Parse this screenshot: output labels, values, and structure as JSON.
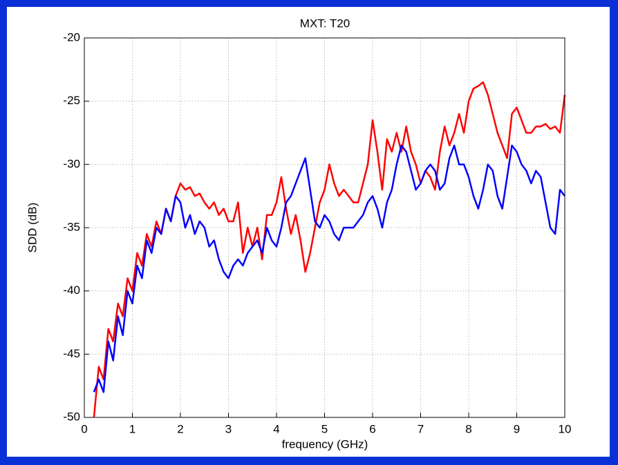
{
  "chart_data": {
    "type": "line",
    "title": "MXT: T20",
    "xlabel": "frequency (GHz)",
    "ylabel": "SDD (dB)",
    "x": [
      0.2,
      0.3,
      0.4,
      0.5,
      0.6,
      0.7,
      0.8,
      0.9,
      1.0,
      1.1,
      1.2,
      1.3,
      1.4,
      1.5,
      1.6,
      1.7,
      1.8,
      1.9,
      2.0,
      2.1,
      2.2,
      2.3,
      2.4,
      2.5,
      2.6,
      2.7,
      2.8,
      2.9,
      3.0,
      3.1,
      3.2,
      3.3,
      3.4,
      3.5,
      3.6,
      3.7,
      3.8,
      3.9,
      4.0,
      4.1,
      4.2,
      4.3,
      4.4,
      4.5,
      4.6,
      4.7,
      4.8,
      4.9,
      5.0,
      5.1,
      5.2,
      5.3,
      5.4,
      5.5,
      5.6,
      5.7,
      5.8,
      5.9,
      6.0,
      6.1,
      6.2,
      6.3,
      6.4,
      6.5,
      6.6,
      6.7,
      6.8,
      6.9,
      7.0,
      7.1,
      7.2,
      7.3,
      7.4,
      7.5,
      7.6,
      7.7,
      7.8,
      7.9,
      8.0,
      8.1,
      8.2,
      8.3,
      8.4,
      8.5,
      8.6,
      8.7,
      8.8,
      8.9,
      9.0,
      9.1,
      9.2,
      9.3,
      9.4,
      9.5,
      9.6,
      9.7,
      9.8,
      9.9,
      10.0
    ],
    "series": [
      {
        "color": "#ff0000",
        "values": [
          -50,
          -46,
          -47,
          -43,
          -44,
          -41,
          -42,
          -39,
          -40,
          -37,
          -38,
          -35.5,
          -36.5,
          -34.5,
          -35.5,
          -33.5,
          -34.5,
          -32.5,
          -31.5,
          -32,
          -31.8,
          -32.5,
          -32.3,
          -33,
          -33.5,
          -33,
          -34,
          -33.5,
          -34.5,
          -34.5,
          -33,
          -37,
          -35,
          -36.5,
          -35,
          -37.5,
          -34,
          -34,
          -33,
          -31,
          -33.5,
          -35.5,
          -34,
          -36,
          -38.5,
          -37,
          -35,
          -33,
          -32,
          -30,
          -31.5,
          -32.5,
          -32,
          -32.5,
          -33,
          -33,
          -31.5,
          -30,
          -26.5,
          -29,
          -32,
          -28,
          -29,
          -27.5,
          -29,
          -27,
          -29,
          -30,
          -31.5,
          -30.5,
          -31,
          -32,
          -29,
          -27,
          -28.5,
          -27.5,
          -26,
          -27.5,
          -25,
          -24,
          -23.8,
          -23.5,
          -24.5,
          -26,
          -27.5,
          -28.5,
          -29.5,
          -26,
          -25.5,
          -26.5,
          -27.5,
          -27.5,
          -27,
          -27,
          -26.8,
          -27.2,
          -27,
          -27.5,
          -24.5
        ]
      },
      {
        "color": "#0000ff",
        "values": [
          -48,
          -47,
          -48,
          -44,
          -45.5,
          -42,
          -43.5,
          -40,
          -41,
          -38,
          -39,
          -36,
          -37,
          -35,
          -35.5,
          -33.5,
          -34.5,
          -32.5,
          -33,
          -35,
          -34,
          -35.5,
          -34.5,
          -35,
          -36.5,
          -36,
          -37.5,
          -38.5,
          -39,
          -38,
          -37.5,
          -38,
          -37,
          -36.5,
          -36,
          -37,
          -35,
          -36,
          -36.5,
          -35,
          -33,
          -32.5,
          -31.5,
          -30.5,
          -29.5,
          -32,
          -34.5,
          -35,
          -34,
          -34.5,
          -35.5,
          -36,
          -35,
          -35,
          -35,
          -34.5,
          -34,
          -33,
          -32.5,
          -33.5,
          -35,
          -33,
          -32,
          -30,
          -28.5,
          -29,
          -30.5,
          -32,
          -31.5,
          -30.5,
          -30,
          -30.5,
          -32,
          -31.5,
          -29.5,
          -28.5,
          -30,
          -30,
          -31,
          -32.5,
          -33.5,
          -32,
          -30,
          -30.5,
          -32.5,
          -33.5,
          -31,
          -28.5,
          -29,
          -30,
          -30.5,
          -31.5,
          -30.5,
          -31,
          -33,
          -35,
          -35.5,
          -32,
          -32.5
        ]
      }
    ],
    "xlim": [
      0,
      10
    ],
    "ylim": [
      -50,
      -20
    ],
    "xticks": [
      0,
      1,
      2,
      3,
      4,
      5,
      6,
      7,
      8,
      9,
      10
    ],
    "yticks": [
      -50,
      -45,
      -40,
      -35,
      -30,
      -25,
      -20
    ],
    "grid": true
  }
}
